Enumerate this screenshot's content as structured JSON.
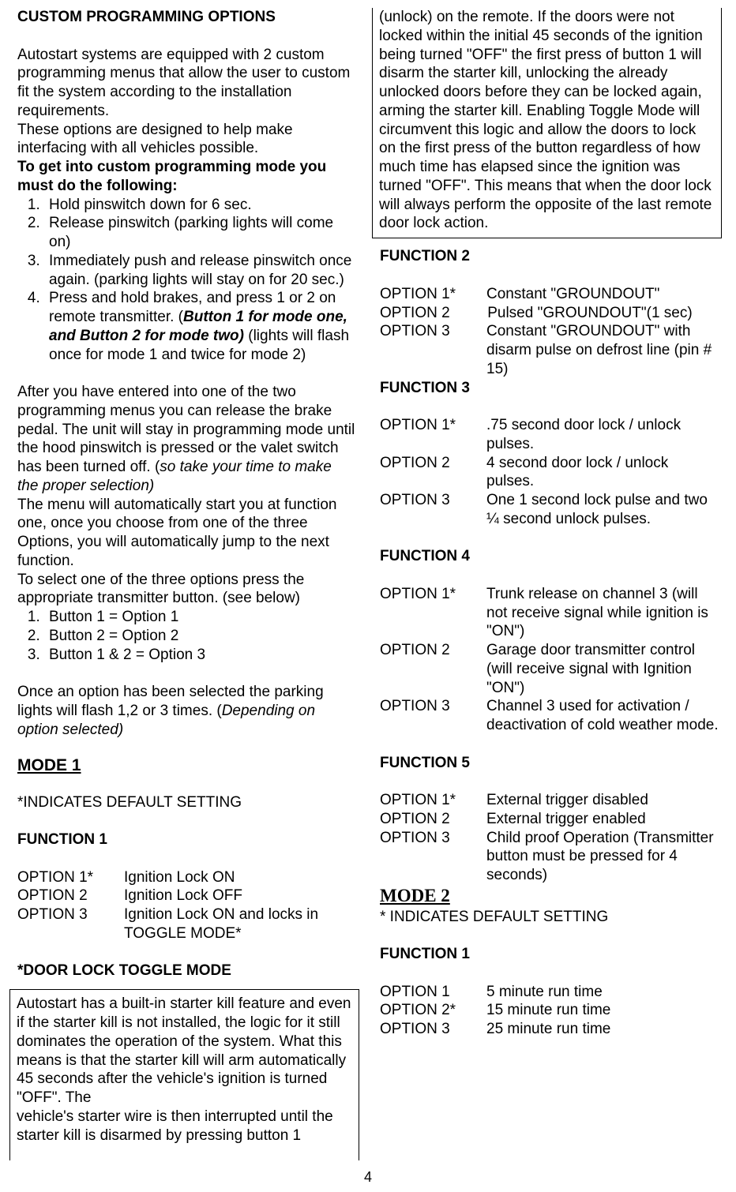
{
  "page_number": "4",
  "heading": "CUSTOM PROGRAMMING OPTIONS",
  "intro1": "Autostart systems are equipped with 2 custom programming menus that allow the user to custom fit the system according to the installation requirements.",
  "intro2": "These options are designed to help make interfacing with all vehicles possible.",
  "intro3": "To get into custom programming mode you must do the following:",
  "steps_in": {
    "s1": "Hold pinswitch down for 6 sec.",
    "s2": "Release pinswitch (parking lights will come on)",
    "s3": "Immediately push and release pinswitch once again. (parking lights will stay on for 20 sec.)",
    "s4a": "Press and hold brakes, and press 1 or 2 on remote transmitter. (",
    "s4b": "Button 1 for mode one, and Button 2 for mode two)",
    "s4c": " (lights will flash once for mode 1 and twice for mode 2)"
  },
  "after1a": "After you have entered into one of the two programming menus you can release the brake pedal. The unit will stay in programming mode until the hood pinswitch is pressed or the valet switch has been turned off. (",
  "after1b": "so take your time to make the proper selection)",
  "after2": "The menu will automatically start you at function one, once you choose from one of the three Options, you will automatically jump to the next function.",
  "after3": "To select one of the three options press the appropriate transmitter button. (see below)",
  "button_map": {
    "b1": "Button 1 = Option 1",
    "b2": "Button 2 = Option 2",
    "b3": "Button 1 & 2 = Option 3"
  },
  "after4a": "Once an option has been selected the parking lights will flash 1,2 or 3 times. (",
  "after4b": "Depending on option selected)",
  "mode1_title": "MODE 1",
  "default_note": "*INDICATES DEFAULT SETTING",
  "mode1": {
    "f1": {
      "title": "FUNCTION 1",
      "o1l": "OPTION 1*",
      "o1d": "Ignition Lock ON",
      "o2l": "OPTION 2",
      "o2d": "Ignition Lock OFF",
      "o3l": "OPTION 3",
      "o3d": "Ignition Lock ON and locks in TOGGLE MODE*"
    },
    "toggle_title": "*DOOR LOCK TOGGLE MODE",
    "toggle_box1": "Autostart has a built-in starter kill feature and even if the starter kill is not installed, the logic for it still dominates the operation of the system.  What this means is that the starter kill will arm automatically 45 seconds after the vehicle's ignition is turned \"OFF\".  The",
    "toggle_box2": "vehicle's starter wire is then interrupted until the starter kill is disarmed by pressing button 1 (unlock) on the remote. If the doors were not locked within the initial 45 seconds of the ignition being turned \"OFF\" the first press of button 1 will disarm the starter kill, unlocking the already unlocked doors before they can be locked again, arming the starter kill. Enabling Toggle Mode will circumvent this logic and allow the doors to lock on the first press of the button regardless of how much time has elapsed since the ignition was turned \"OFF\".  This means that when the door lock will always perform the opposite of the last remote door lock action.",
    "f2": {
      "title": "FUNCTION 2",
      "o1l": "OPTION 1*",
      "o1d": "Constant \"GROUNDOUT\"",
      "o2l": "OPTION 2",
      "o2d": "Pulsed \"GROUNDOUT\"(1 sec)",
      "o3l": "OPTION 3",
      "o3d": "Constant \"GROUNDOUT\" with disarm pulse on defrost line (pin # 15)"
    },
    "f3": {
      "title": "FUNCTION 3",
      "o1l": "OPTION 1*",
      "o1d": ".75 second door lock / unlock pulses.",
      "o2l": "OPTION 2",
      "o2d": "4 second door lock / unlock pulses.",
      "o3l": "OPTION 3",
      "o3d": "One 1 second lock pulse and two ¼ second unlock pulses."
    },
    "f4": {
      "title": "FUNCTION 4",
      "o1l": "OPTION 1*",
      "o1d": "Trunk release on channel 3 (will not receive signal while ignition is \"ON\")",
      "o2l": "OPTION 2",
      "o2d": "Garage door transmitter control (will receive signal with Ignition \"ON\")",
      "o3l": "OPTION 3",
      "o3d": "Channel 3 used for activation / deactivation of cold weather mode."
    },
    "f5": {
      "title": "FUNCTION 5",
      "o1l": "OPTION 1*",
      "o1d": "External trigger disabled",
      "o2l": "OPTION 2",
      "o2d": "External trigger enabled",
      "o3l": "OPTION 3",
      "o3d": "Child proof Operation (Transmitter button must be pressed for 4 seconds)"
    }
  },
  "mode2_title": "MODE 2",
  "default_note2": "* INDICATES DEFAULT SETTING",
  "mode2": {
    "f1": {
      "title": "FUNCTION 1",
      "o1l": "OPTION 1",
      "o1d": "5 minute run time",
      "o2l": "OPTION 2*",
      "o2d": "15 minute run time",
      "o3l": "OPTION 3",
      "o3d": "25 minute run time"
    }
  }
}
